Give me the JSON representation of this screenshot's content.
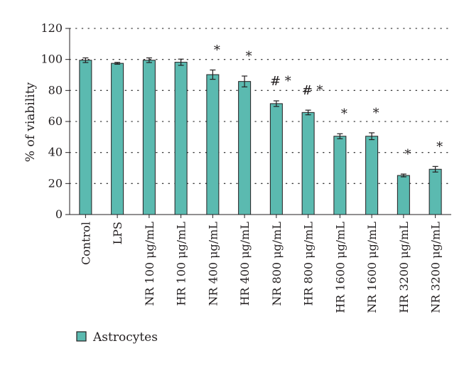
{
  "chart_data": {
    "type": "bar",
    "ylabel": "% of viability",
    "xlabel": "",
    "ylim": [
      0,
      120
    ],
    "yticks": [
      0,
      20,
      40,
      60,
      80,
      100,
      120
    ],
    "grid": "horizontal dotted",
    "legend_position": "bottom-left",
    "categories": [
      "Control",
      "LPS",
      "NR 100 μg/mL",
      "HR 100 μg/mL",
      "NR 400 μg/mL",
      "HR 400 μg/mL",
      "NR 800 μg/mL",
      "HR 800 μg/mL",
      "HR 1600 μg/mL",
      "NR 1600 μg/mL",
      "HR 3200 μg/mL",
      "NR 3200 μg/mL"
    ],
    "series": [
      {
        "name": "Astrocytes",
        "color": "#5bbab0",
        "values": [
          99.5,
          97.5,
          99.5,
          98.2,
          90.2,
          85.8,
          71.5,
          65.8,
          50.5,
          50.5,
          25.2,
          29.2
        ],
        "errors": [
          1.5,
          0.6,
          1.5,
          2.0,
          3.0,
          3.5,
          1.8,
          1.5,
          1.6,
          2.2,
          0.9,
          1.8
        ]
      }
    ],
    "annotations": [
      "",
      "",
      "",
      "",
      "*",
      "*",
      "# *",
      "# *",
      "*",
      "*",
      "*",
      "*"
    ]
  }
}
